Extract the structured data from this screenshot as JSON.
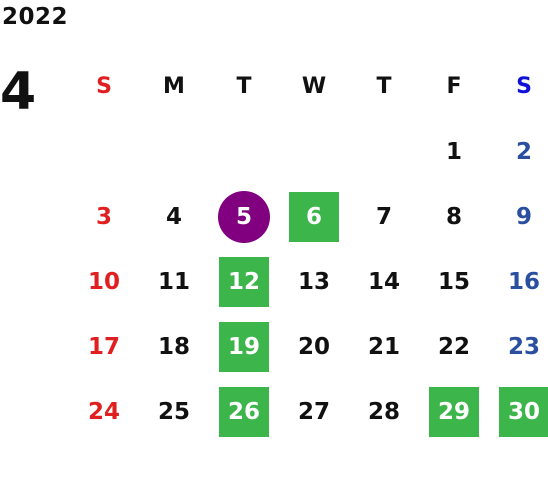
{
  "calendar": {
    "year": "2022",
    "month": "4",
    "weekdays": [
      "S",
      "M",
      "T",
      "W",
      "T",
      "F",
      "S"
    ],
    "weekday_colors": [
      "#e02020",
      "#111111",
      "#111111",
      "#111111",
      "#111111",
      "#111111",
      "#1010d8"
    ],
    "weekday_text_colors": {
      "sunday": "#e02020",
      "saturday": "#2a4ea0",
      "weekday": "#111111",
      "highlight": "#ffffff"
    },
    "weeks": [
      [
        null,
        null,
        null,
        null,
        null,
        {
          "day": "1"
        },
        {
          "day": "2"
        }
      ],
      [
        {
          "day": "3"
        },
        {
          "day": "4"
        },
        {
          "day": "5",
          "mark": "today"
        },
        {
          "day": "6",
          "mark": "green"
        },
        {
          "day": "7"
        },
        {
          "day": "8"
        },
        {
          "day": "9"
        }
      ],
      [
        {
          "day": "10"
        },
        {
          "day": "11"
        },
        {
          "day": "12",
          "mark": "green"
        },
        {
          "day": "13"
        },
        {
          "day": "14"
        },
        {
          "day": "15"
        },
        {
          "day": "16"
        }
      ],
      [
        {
          "day": "17"
        },
        {
          "day": "18"
        },
        {
          "day": "19",
          "mark": "green"
        },
        {
          "day": "20"
        },
        {
          "day": "21"
        },
        {
          "day": "22"
        },
        {
          "day": "23"
        }
      ],
      [
        {
          "day": "24"
        },
        {
          "day": "25"
        },
        {
          "day": "26",
          "mark": "green"
        },
        {
          "day": "27"
        },
        {
          "day": "28"
        },
        {
          "day": "29",
          "mark": "green"
        },
        {
          "day": "30",
          "mark": "green"
        }
      ]
    ],
    "colors": {
      "green_mark": "#3cb54a",
      "today_mark": "#800080"
    }
  }
}
